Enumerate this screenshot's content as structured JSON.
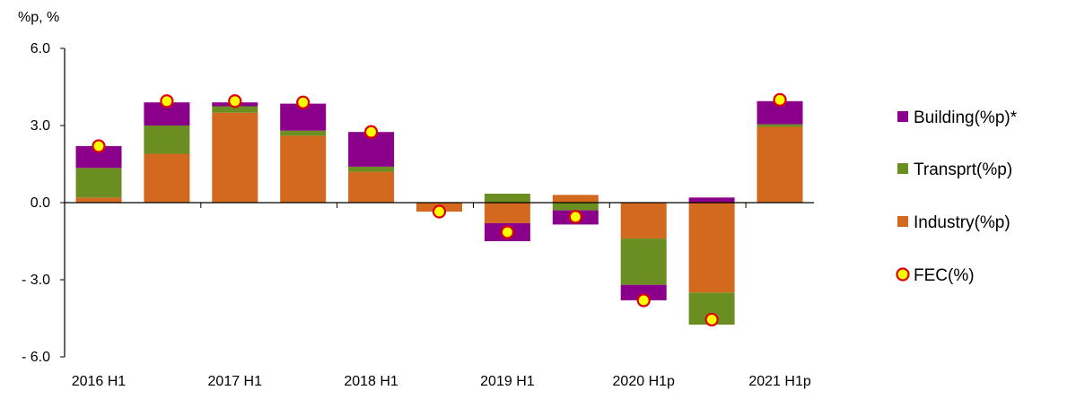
{
  "chart_data": {
    "type": "bar",
    "stacked": true,
    "y_unit_label": "%p, %",
    "ylim": [
      -6.0,
      6.0
    ],
    "y_ticks": [
      "6.0",
      "3.0",
      "0.0",
      "- 3.0",
      "- 6.0"
    ],
    "y_tick_values": [
      6,
      3,
      0,
      -3,
      -6
    ],
    "categories": [
      "2016 H1",
      "",
      "2017 H1",
      "",
      "2018 H1",
      "",
      "2019 H1",
      "",
      "2020 H1p",
      "",
      "2021 H1p"
    ],
    "category_labels": [
      "2016 H1",
      "2017 H1",
      "2018 H1",
      "2019 H1",
      "2020 H1p",
      "2021 H1p"
    ],
    "series": [
      {
        "name": "Industry(%p)",
        "color": "#d2691e",
        "values": [
          0.2,
          1.9,
          3.5,
          2.6,
          1.2,
          -0.35,
          -0.8,
          0.3,
          -1.4,
          -3.5,
          2.95
        ]
      },
      {
        "name": "Transprt(%p)",
        "color": "#6b8e23",
        "values": [
          1.15,
          1.1,
          0.25,
          0.2,
          0.2,
          0.0,
          0.35,
          -0.3,
          -1.8,
          -1.25,
          0.1
        ]
      },
      {
        "name": "Building(%p)*",
        "color": "#8b008b",
        "values": [
          0.85,
          0.9,
          0.15,
          1.05,
          1.35,
          0.0,
          -0.7,
          -0.55,
          -0.6,
          0.2,
          0.9
        ]
      }
    ],
    "line_series": {
      "name": "FEC(%)",
      "marker_fill": "#ffff00",
      "marker_stroke": "#e00000",
      "values": [
        2.2,
        3.95,
        3.95,
        3.9,
        2.75,
        -0.35,
        -1.15,
        -0.55,
        -3.8,
        -4.55,
        4.0
      ]
    },
    "legend": {
      "placement": "right",
      "entries": [
        "Building(%p)*",
        "Transprt(%p)",
        "Industry(%p)",
        "FEC(%)"
      ]
    },
    "grid": false
  }
}
